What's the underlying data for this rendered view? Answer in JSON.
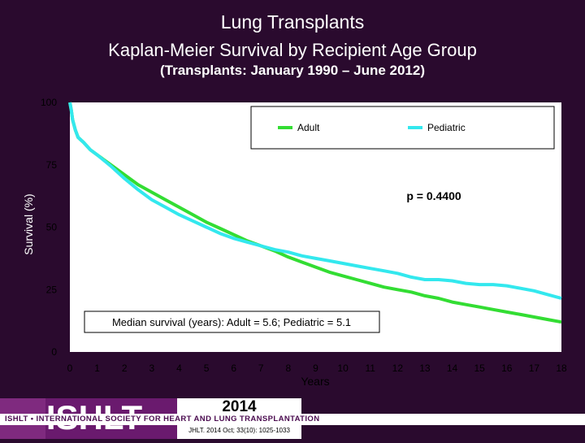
{
  "header": {
    "title": "Lung Transplants",
    "subtitle": "Kaplan-Meier Survival by Recipient Age Group",
    "subtitle2": "(Transplants: January 1990 – June 2012)"
  },
  "colors": {
    "background": "#2a0a2e",
    "adult": "#33dd33",
    "pediatric": "#33e8ee",
    "plot_bg": "#ffffff",
    "p_value": "#ffff66",
    "banner": "#4a0b4f"
  },
  "footer": {
    "banner": "ISHLT • INTERNATIONAL SOCIETY FOR HEART AND LUNG TRANSPLANTATION",
    "logo_text": "ISHLT",
    "year": "2014",
    "citation": "JHLT. 2014 Oct; 33(10): 1025-1033"
  },
  "chart_data": {
    "type": "line",
    "title": "Kaplan-Meier Survival by Recipient Age Group",
    "xlabel": "Years",
    "ylabel": "Survival (%)",
    "xlim": [
      0,
      18
    ],
    "ylim": [
      0,
      100
    ],
    "x_ticks": [
      "0",
      "1",
      "2",
      "3",
      "4",
      "5",
      "6",
      "7",
      "8",
      "9",
      "10",
      "11",
      "12",
      "13",
      "14",
      "15",
      "16",
      "17",
      "18"
    ],
    "y_ticks": [
      "0",
      "25",
      "50",
      "75",
      "100"
    ],
    "annotation_p": "p = 0.4400",
    "annotation_median": "Median survival (years): Adult = 5.6; Pediatric = 5.1",
    "legend_position": "top-right",
    "series": [
      {
        "name": "Adult",
        "color": "#33dd33",
        "x": [
          0,
          0.05,
          0.1,
          0.2,
          0.3,
          0.5,
          0.75,
          1,
          1.5,
          2,
          2.5,
          3,
          3.5,
          4,
          4.5,
          5,
          5.5,
          6,
          6.5,
          7,
          7.5,
          8,
          8.5,
          9,
          9.5,
          10,
          10.5,
          11,
          11.5,
          12,
          12.5,
          13,
          13.5,
          14,
          14.5,
          15,
          15.5,
          16,
          16.5,
          17,
          17.5,
          18
        ],
        "y": [
          100,
          97,
          93,
          89,
          86,
          84,
          81,
          79,
          75,
          71,
          67,
          64,
          61,
          58,
          55,
          52,
          49.5,
          47,
          44.5,
          42.5,
          40.5,
          38,
          36,
          34,
          32,
          30.5,
          29,
          27.5,
          26,
          25,
          24,
          22.5,
          21.5,
          20,
          19,
          18,
          17,
          16,
          15,
          14,
          13,
          12
        ]
      },
      {
        "name": "Pediatric",
        "color": "#33e8ee",
        "x": [
          0,
          0.05,
          0.1,
          0.2,
          0.3,
          0.5,
          0.75,
          1,
          1.5,
          2,
          2.5,
          3,
          3.5,
          4,
          4.5,
          5,
          5.5,
          6,
          6.5,
          7,
          7.5,
          8,
          8.5,
          9,
          9.5,
          10,
          10.5,
          11,
          11.5,
          12,
          12.5,
          13,
          13.5,
          14,
          14.5,
          15,
          15.5,
          16,
          16.5,
          17,
          17.5,
          18
        ],
        "y": [
          100,
          97,
          93,
          89,
          86,
          84,
          81,
          79,
          74.5,
          69.5,
          65,
          61,
          58,
          55,
          52.5,
          50,
          47.5,
          45.5,
          44,
          42.5,
          41,
          40,
          38.5,
          37.5,
          36.5,
          35.5,
          34.5,
          33.5,
          32.5,
          31.5,
          30,
          29,
          29,
          28.5,
          27.5,
          27,
          27,
          26.5,
          25.5,
          24.5,
          23,
          21.5
        ]
      }
    ]
  }
}
